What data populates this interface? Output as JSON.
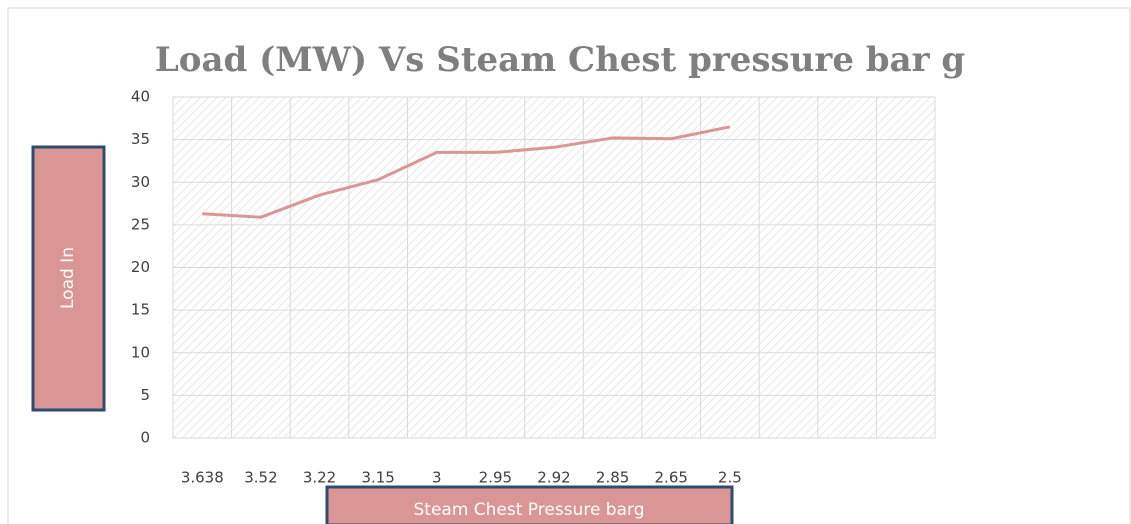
{
  "chart_data": {
    "type": "line",
    "title": "Load (MW) Vs Steam Chest pressure bar g",
    "x_label": "Steam Chest Pressure barg",
    "y_label": "Load In",
    "categories": [
      "3.638",
      "3.52",
      "3.22",
      "3.15",
      "3",
      "2.95",
      "2.92",
      "2.85",
      "2.65",
      "2.5",
      null,
      null,
      null
    ],
    "series": [
      {
        "name": "Load",
        "color": "#d99694",
        "values": [
          26.3,
          25.9,
          28.5,
          30.3,
          33.5,
          33.5,
          34.1,
          35.2,
          35.1,
          36.5,
          null,
          null,
          null
        ]
      }
    ],
    "ylim": [
      0,
      40
    ],
    "yticks": [
      0,
      5,
      10,
      15,
      20,
      25,
      30,
      35,
      40
    ],
    "grid": true
  }
}
